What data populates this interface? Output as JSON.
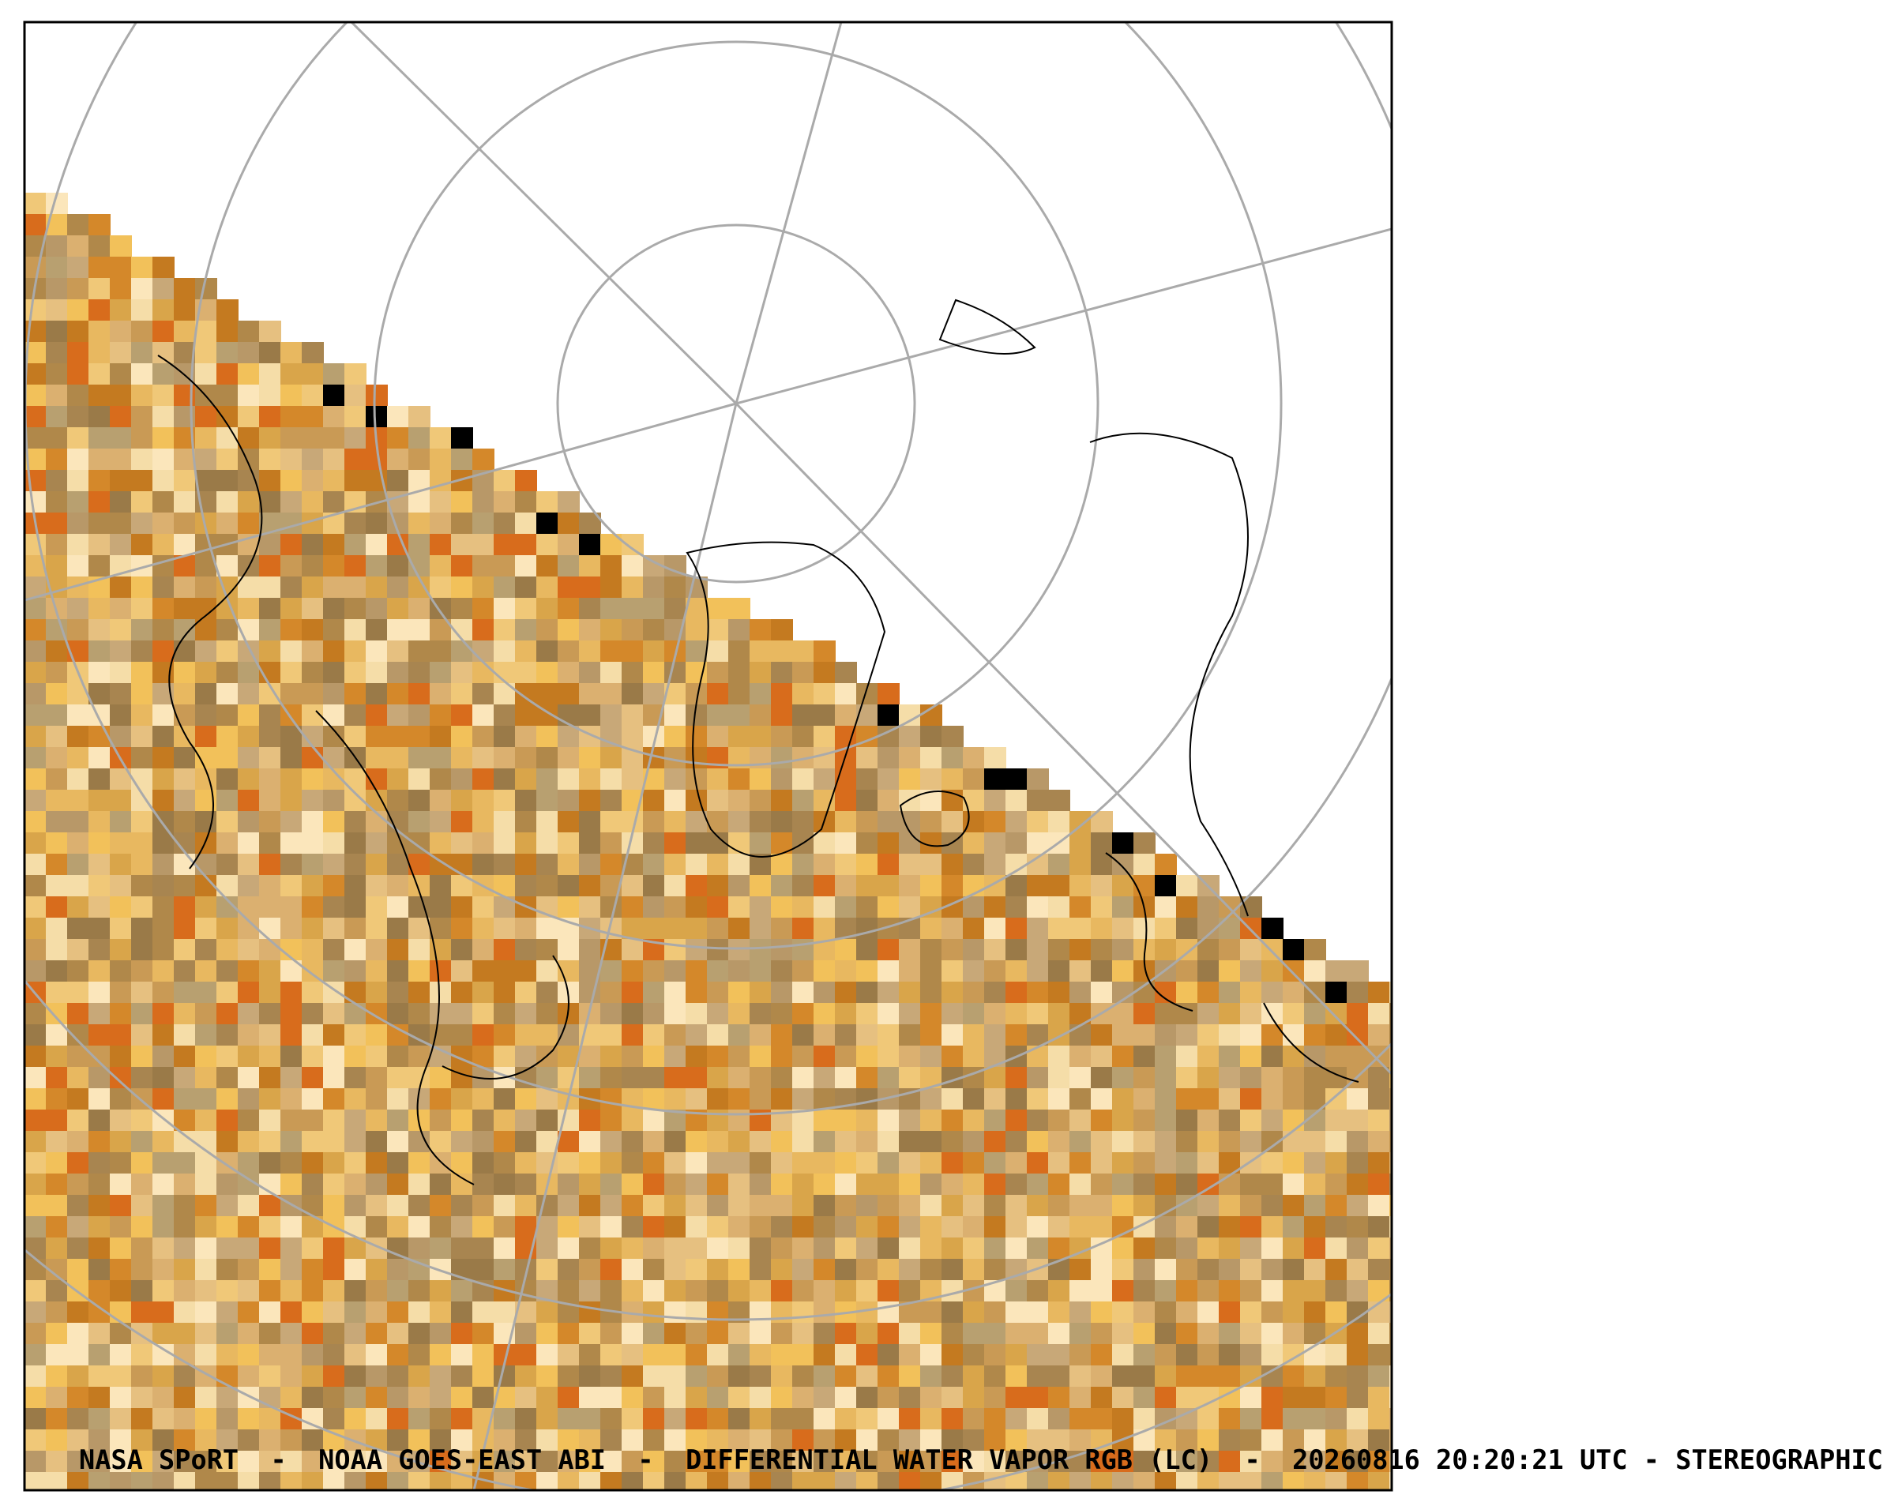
{
  "map": {
    "caption": "NASA SPoRT  -  NOAA GOES-EAST ABI  -  DIFFERENTIAL WATER VAPOR RGB (LC)  -  20260816 20:20:21 UTC - STEREOGRAPHIC"
  }
}
